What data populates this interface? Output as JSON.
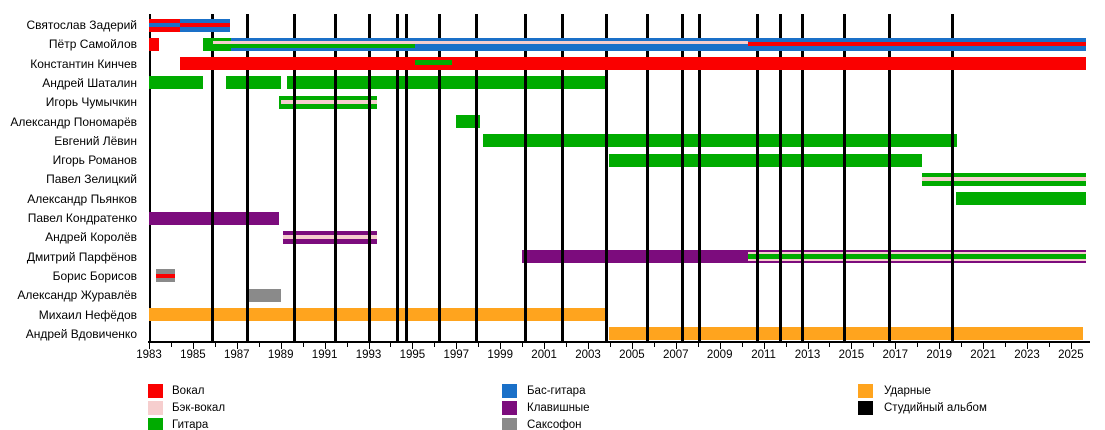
{
  "chart_data": {
    "type": "timeline",
    "title": "",
    "description": "Band members timeline (Gantt-style) with roles as colored bars, years 1983-2025, black vertical lines marking studio albums",
    "x_axis": {
      "min_year": 1983,
      "max_year": 2025,
      "label_step": 2,
      "labeled_years": [
        1983,
        1985,
        1987,
        1989,
        1991,
        1993,
        1995,
        1997,
        1999,
        2001,
        2003,
        2005,
        2007,
        2009,
        2011,
        2013,
        2015,
        2017,
        2019,
        2021,
        2023,
        2025
      ],
      "minor_tick_every": 1
    },
    "role_colors": {
      "vocal": "#fa0000",
      "back_vocal": "#f6cece",
      "guitar": "#00ab00",
      "bass": "#1a70c8",
      "keyboards": "#7c0c7d",
      "sax": "#8a8a8a",
      "drums": "#ffa41e",
      "album": "#000000"
    },
    "members": [
      {
        "name": "Святослав Задерий",
        "segments": [
          {
            "role": "vocal",
            "start": 1983.0,
            "end": 1984.4
          },
          {
            "role": "bass",
            "start": 1984.4,
            "end": 1986.7
          },
          {
            "role": "bass",
            "start": 1983.0,
            "end": 1984.4,
            "stripe": [
              0.35,
              0.3
            ]
          },
          {
            "role": "vocal",
            "start": 1984.4,
            "end": 1986.7,
            "stripe": [
              0.35,
              0.3
            ]
          }
        ]
      },
      {
        "name": "Пётр Самойлов",
        "segments": [
          {
            "role": "vocal",
            "start": 1983.0,
            "end": 1983.45
          },
          {
            "role": "guitar",
            "start": 1985.45,
            "end": 1986.75
          },
          {
            "role": "bass",
            "start": 1986.75,
            "end": 2025.7
          },
          {
            "role": "guitar",
            "start": 1986.75,
            "end": 1995.1,
            "stripe": [
              0.5,
              0.27
            ]
          },
          {
            "role": "back_vocal",
            "start": 1985.9,
            "end": 2010.3,
            "stripe": [
              0.27,
              0.2
            ]
          },
          {
            "role": "vocal",
            "start": 2010.3,
            "end": 2025.7,
            "stripe": [
              0.3,
              0.32
            ]
          }
        ]
      },
      {
        "name": "Константин Кинчев",
        "segments": [
          {
            "role": "vocal",
            "start": 1984.4,
            "end": 2025.7
          },
          {
            "role": "guitar",
            "start": 1995.1,
            "end": 1996.8,
            "stripe": [
              0.2,
              0.42
            ]
          }
        ]
      },
      {
        "name": "Андрей Шаталин",
        "segments": [
          {
            "role": "guitar",
            "start": 1983.0,
            "end": 1985.45
          },
          {
            "role": "guitar",
            "start": 1986.5,
            "end": 1989.0
          },
          {
            "role": "guitar",
            "start": 1989.3,
            "end": 2003.85
          }
        ]
      },
      {
        "name": "Игорь Чумычкин",
        "segments": [
          {
            "role": "guitar",
            "start": 1988.9,
            "end": 1993.4
          },
          {
            "role": "back_vocal",
            "start": 1989.0,
            "end": 1993.4,
            "stripe": [
              0.36,
              0.26
            ]
          }
        ]
      },
      {
        "name": "Александр Пономарёв",
        "segments": [
          {
            "role": "guitar",
            "start": 1997.0,
            "end": 1998.1
          }
        ]
      },
      {
        "name": "Евгений Лёвин",
        "segments": [
          {
            "role": "guitar",
            "start": 1998.2,
            "end": 2019.8
          }
        ]
      },
      {
        "name": "Игорь Романов",
        "segments": [
          {
            "role": "guitar",
            "start": 2003.95,
            "end": 2018.2
          }
        ]
      },
      {
        "name": "Павел Зелицкий",
        "segments": [
          {
            "role": "guitar",
            "start": 2018.2,
            "end": 2025.7
          },
          {
            "role": "back_vocal",
            "start": 2018.2,
            "end": 2025.7,
            "stripe": [
              0.34,
              0.28
            ]
          }
        ]
      },
      {
        "name": "Александр Пьянков",
        "segments": [
          {
            "role": "guitar",
            "start": 2019.75,
            "end": 2025.7
          }
        ]
      },
      {
        "name": "Павел Кондратенко",
        "segments": [
          {
            "role": "keyboards",
            "start": 1983.0,
            "end": 1988.9
          }
        ]
      },
      {
        "name": "Андрей Королёв",
        "segments": [
          {
            "role": "keyboards",
            "start": 1989.1,
            "end": 1993.4
          },
          {
            "role": "back_vocal",
            "start": 1989.1,
            "end": 1993.4,
            "stripe": [
              0.36,
              0.26
            ]
          }
        ]
      },
      {
        "name": "Дмитрий Парфёнов",
        "segments": [
          {
            "role": "keyboards",
            "start": 2000.0,
            "end": 2025.7
          },
          {
            "role": "back_vocal",
            "start": 2010.3,
            "end": 2025.7,
            "stripe": [
              0.15,
              0.7
            ]
          },
          {
            "role": "guitar",
            "start": 2010.3,
            "end": 2025.7,
            "stripe": [
              0.28,
              0.44
            ]
          }
        ]
      },
      {
        "name": "Борис Борисов",
        "segments": [
          {
            "role": "sax",
            "start": 1983.3,
            "end": 1984.2
          },
          {
            "role": "vocal",
            "start": 1983.3,
            "end": 1984.2,
            "stripe": [
              0.33,
              0.34
            ]
          }
        ]
      },
      {
        "name": "Александр Журавлёв",
        "segments": [
          {
            "role": "sax",
            "start": 1987.5,
            "end": 1989.0
          }
        ]
      },
      {
        "name": "Михаил Нефёдов",
        "segments": [
          {
            "role": "drums",
            "start": 1983.0,
            "end": 2003.85
          }
        ]
      },
      {
        "name": "Андрей Вдовиченко",
        "segments": [
          {
            "role": "drums",
            "start": 2003.95,
            "end": 2025.55
          }
        ]
      }
    ],
    "studio_album_years": [
      1985.9,
      1987.5,
      1989.65,
      1991.5,
      1993.05,
      1994.3,
      1994.75,
      1996.25,
      1997.9,
      2000.15,
      2001.85,
      2003.85,
      2005.7,
      2007.3,
      2008.1,
      2010.7,
      2011.75,
      2012.75,
      2014.7,
      2016.75,
      2019.6
    ],
    "legend": {
      "columns": [
        [
          {
            "label": "Вокал",
            "role": "vocal"
          },
          {
            "label": "Бэк-вокал",
            "role": "back_vocal"
          },
          {
            "label": "Гитара",
            "role": "guitar"
          }
        ],
        [
          {
            "label": "Бас-гитара",
            "role": "bass"
          },
          {
            "label": "Клавишные",
            "role": "keyboards"
          },
          {
            "label": "Саксофон",
            "role": "sax"
          }
        ],
        [
          {
            "label": "Ударные",
            "role": "drums"
          },
          {
            "label": "Студийный альбом",
            "role": "album"
          }
        ]
      ]
    }
  }
}
